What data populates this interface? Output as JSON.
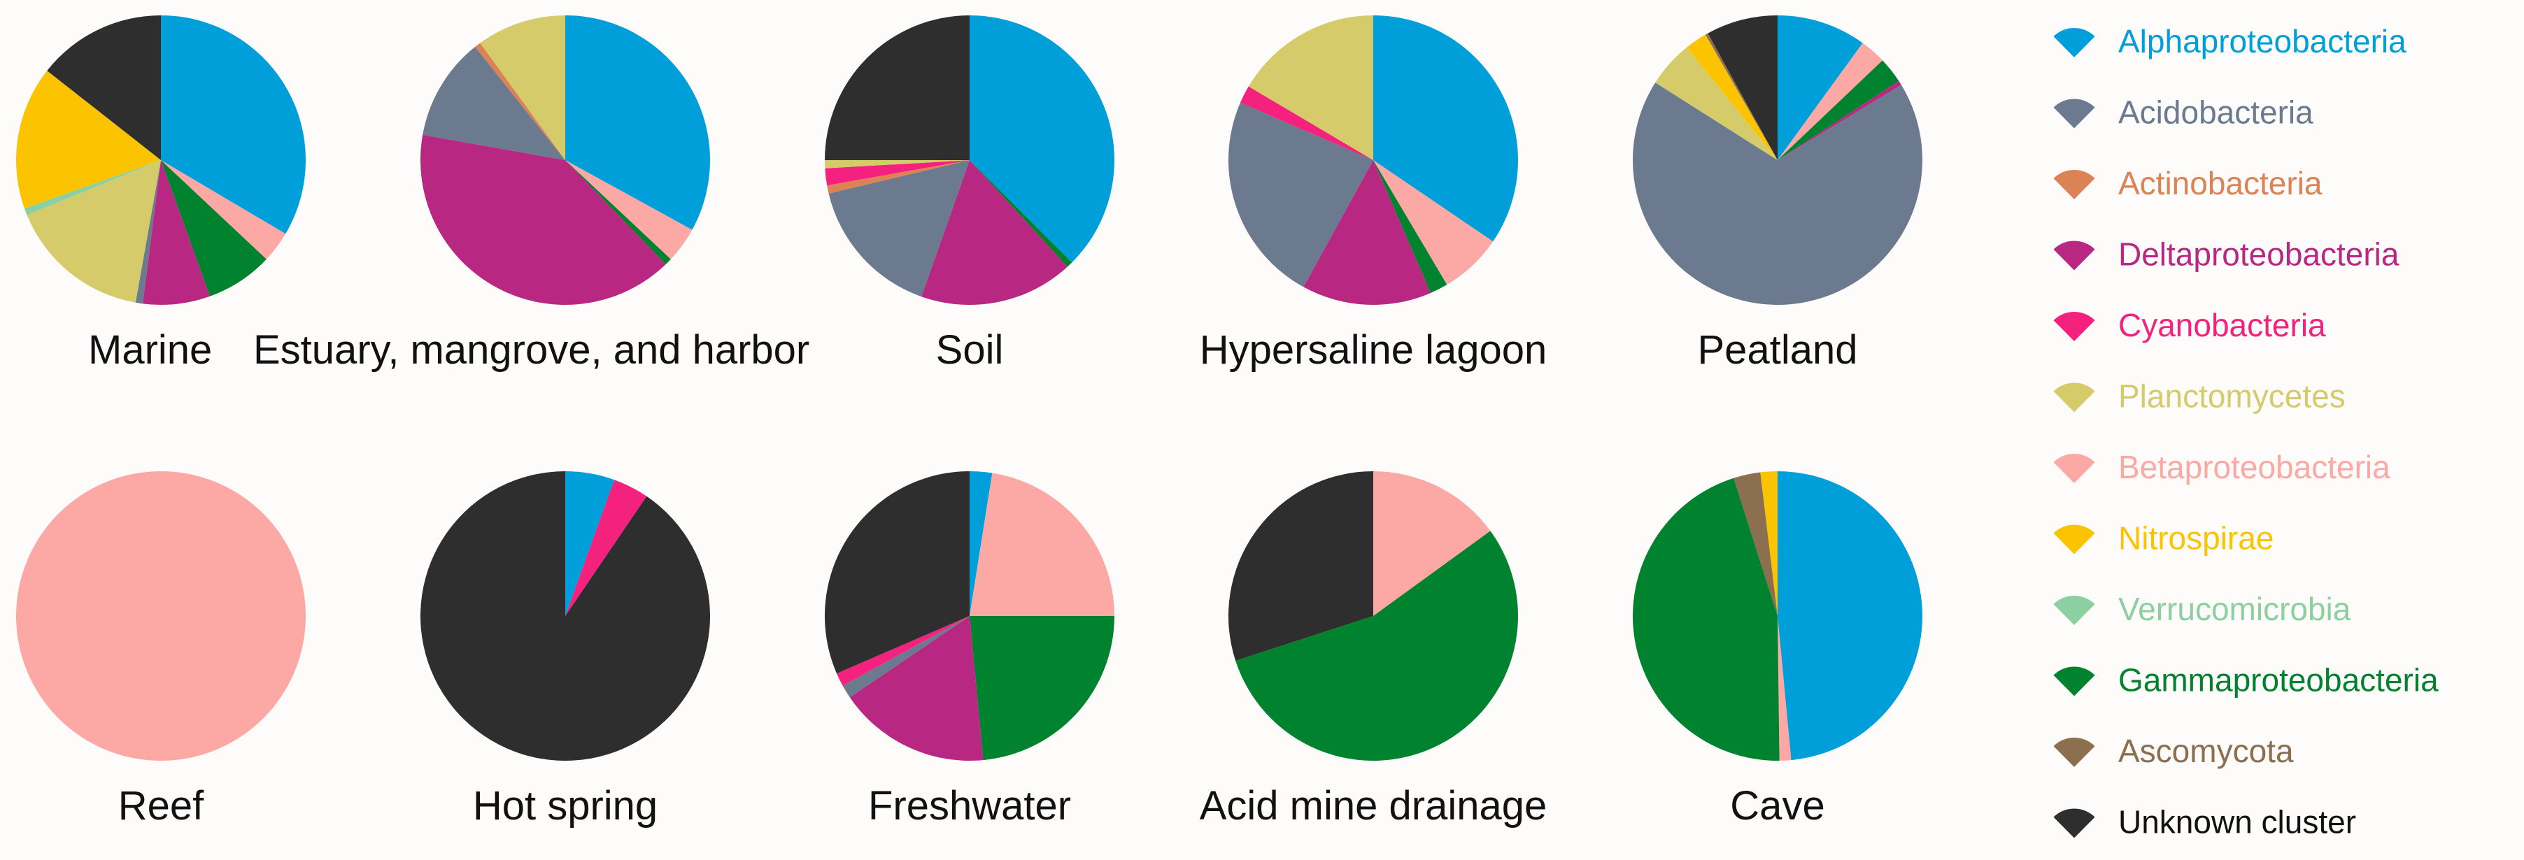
{
  "legend": {
    "items": [
      {
        "label": "Alphaproteobacteria",
        "color": "#009fda"
      },
      {
        "label": "Acidobacteria",
        "color": "#6b7a8f"
      },
      {
        "label": "Actinobacteria",
        "color": "#db8355"
      },
      {
        "label": "Deltaproteobacteria",
        "color": "#b82883"
      },
      {
        "label": "Cyanobacteria",
        "color": "#f5217f"
      },
      {
        "label": "Planctomycetes",
        "color": "#d6cb6a"
      },
      {
        "label": "Betaproteobacteria",
        "color": "#fca8a5"
      },
      {
        "label": "Nitrospirae",
        "color": "#fcc400"
      },
      {
        "label": "Verrucomicrobia",
        "color": "#8ccfa0"
      },
      {
        "label": "Gammaproteobacteria",
        "color": "#00822e"
      },
      {
        "label": "Ascomycota",
        "color": "#8b6f4f"
      },
      {
        "label": "Unknown cluster",
        "color": "#2e2e2e",
        "text_color": "#111111"
      }
    ]
  },
  "chart_data": [
    {
      "type": "pie",
      "title": "Marine",
      "categories": [
        "Alphaproteobacteria",
        "Betaproteobacteria",
        "Gammaproteobacteria",
        "Deltaproteobacteria",
        "Acidobacteria",
        "Planctomycetes",
        "Verrucomicrobia",
        "Nitrospirae",
        "Unknown cluster"
      ],
      "values": [
        33.5,
        3.5,
        7.5,
        7.5,
        0.8,
        16,
        0.8,
        16,
        14.4
      ]
    },
    {
      "type": "pie",
      "title": "Estuary, mangrove, and harbor",
      "categories": [
        "Alphaproteobacteria",
        "Betaproteobacteria",
        "Gammaproteobacteria",
        "Deltaproteobacteria",
        "Acidobacteria",
        "Actinobacteria",
        "Planctomycetes"
      ],
      "values": [
        33,
        4,
        0.8,
        40,
        11.5,
        0.7,
        10
      ]
    },
    {
      "type": "pie",
      "title": "Soil",
      "categories": [
        "Alphaproteobacteria",
        "Gammaproteobacteria",
        "Deltaproteobacteria",
        "Acidobacteria",
        "Actinobacteria",
        "Cyanobacteria",
        "Planctomycetes",
        "Unknown cluster"
      ],
      "values": [
        37.5,
        0.7,
        17.2,
        15.9,
        0.9,
        1.9,
        0.9,
        25
      ]
    },
    {
      "type": "pie",
      "title": "Hypersaline lagoon",
      "categories": [
        "Alphaproteobacteria",
        "Betaproteobacteria",
        "Gammaproteobacteria",
        "Deltaproteobacteria",
        "Acidobacteria",
        "Cyanobacteria",
        "Planctomycetes"
      ],
      "values": [
        34.5,
        7,
        2,
        14.5,
        23.5,
        2,
        16.5
      ]
    },
    {
      "type": "pie",
      "title": "Peatland",
      "categories": [
        "Alphaproteobacteria",
        "Betaproteobacteria",
        "Gammaproteobacteria",
        "Deltaproteobacteria",
        "Acidobacteria",
        "Planctomycetes",
        "Nitrospirae",
        "Ascomycota",
        "Unknown cluster"
      ],
      "values": [
        10,
        2.9,
        2.9,
        0.5,
        67.7,
        5.2,
        2.5,
        0.3,
        8
      ]
    },
    {
      "type": "pie",
      "title": "Reef",
      "categories": [
        "Betaproteobacteria"
      ],
      "values": [
        100
      ]
    },
    {
      "type": "pie",
      "title": "Hot spring",
      "categories": [
        "Alphaproteobacteria",
        "Cyanobacteria",
        "Unknown cluster"
      ],
      "values": [
        5.5,
        4,
        90.5
      ]
    },
    {
      "type": "pie",
      "title": "Freshwater",
      "categories": [
        "Alphaproteobacteria",
        "Betaproteobacteria",
        "Gammaproteobacteria",
        "Deltaproteobacteria",
        "Acidobacteria",
        "Cyanobacteria",
        "Unknown cluster"
      ],
      "values": [
        2.5,
        22.5,
        23.5,
        17,
        1.5,
        1.5,
        31.5
      ]
    },
    {
      "type": "pie",
      "title": "Acid mine drainage",
      "categories": [
        "Betaproteobacteria",
        "Gammaproteobacteria",
        "Unknown cluster"
      ],
      "values": [
        15,
        55,
        30
      ]
    },
    {
      "type": "pie",
      "title": "Cave",
      "categories": [
        "Alphaproteobacteria",
        "Betaproteobacteria",
        "Gammaproteobacteria",
        "Ascomycota",
        "Nitrospirae"
      ],
      "values": [
        48.5,
        1.3,
        45.3,
        3,
        1.9
      ]
    }
  ]
}
